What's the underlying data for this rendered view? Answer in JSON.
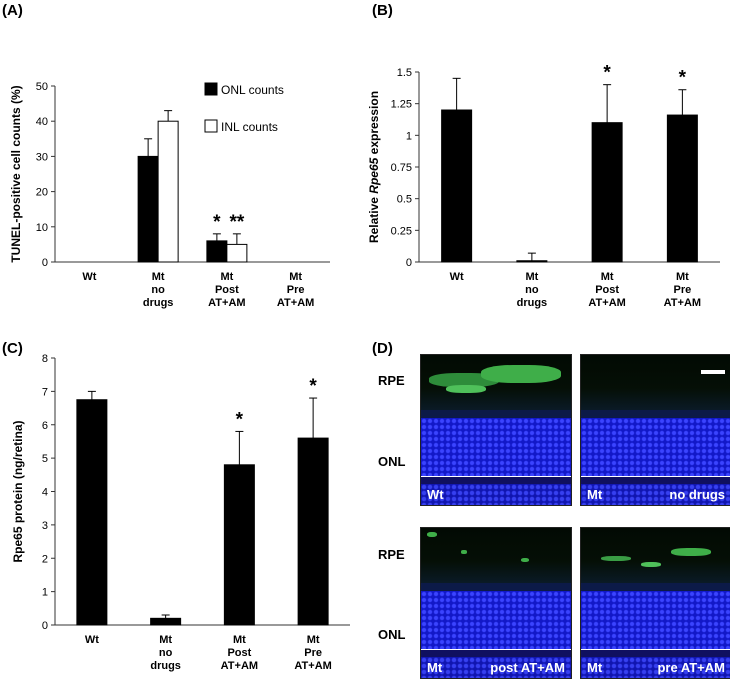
{
  "panels": {
    "A": {
      "label": "(A)"
    },
    "B": {
      "label": "(B)"
    },
    "C": {
      "label": "(C)"
    },
    "D": {
      "label": "(D)"
    }
  },
  "chart_data": [
    {
      "id": "A",
      "type": "bar",
      "ylabel": "TUNEL-positive cell counts (%)",
      "ylim": [
        0,
        50
      ],
      "yticks": [
        "0",
        "10",
        "20",
        "30",
        "40",
        "50"
      ],
      "categories": [
        [
          "Wt"
        ],
        [
          "Mt",
          "no",
          "drugs"
        ],
        [
          "Mt",
          "Post",
          "AT+AM"
        ],
        [
          "Mt",
          "Pre",
          "AT+AM"
        ]
      ],
      "series": [
        {
          "name": "ONL counts",
          "color": "#000000",
          "values": [
            0,
            30,
            6,
            0
          ],
          "errors": [
            0,
            5,
            2,
            0
          ]
        },
        {
          "name": "INL counts",
          "color": "#ffffff",
          "values": [
            0,
            40,
            5,
            0
          ],
          "errors": [
            0,
            3,
            3,
            0
          ]
        }
      ],
      "annotations": [
        {
          "text": "*",
          "category": 2,
          "series": 0
        },
        {
          "text": "**",
          "category": 2,
          "series": 1
        }
      ],
      "legend": "top-right"
    },
    {
      "id": "B",
      "type": "bar",
      "ylabel_parts": [
        "Relative ",
        "Rpe65",
        " expression"
      ],
      "ylim": [
        0,
        1.5
      ],
      "yticks": [
        "0",
        "0.25",
        "0.5",
        "0.75",
        "1",
        "1.25",
        "1.5"
      ],
      "categories": [
        [
          "Wt"
        ],
        [
          "Mt",
          "no",
          "drugs"
        ],
        [
          "Mt",
          "Post",
          "AT+AM"
        ],
        [
          "Mt",
          "Pre",
          "AT+AM"
        ]
      ],
      "series": [
        {
          "color": "#000000",
          "values": [
            1.2,
            0.01,
            1.1,
            1.16
          ],
          "errors": [
            0.25,
            0.06,
            0.3,
            0.2
          ]
        }
      ],
      "annotations": [
        {
          "text": "*",
          "category": 2,
          "series": 0
        },
        {
          "text": "*",
          "category": 3,
          "series": 0
        }
      ]
    },
    {
      "id": "C",
      "type": "bar",
      "ylabel": "Rpe65 protein (ng/retina)",
      "ylim": [
        0,
        8
      ],
      "yticks": [
        "0",
        "1",
        "2",
        "3",
        "4",
        "5",
        "6",
        "7",
        "8"
      ],
      "categories": [
        [
          "Wt"
        ],
        [
          "Mt",
          "no",
          "drugs"
        ],
        [
          "Mt",
          "Post",
          "AT+AM"
        ],
        [
          "Mt",
          "Pre",
          "AT+AM"
        ]
      ],
      "series": [
        {
          "color": "#000000",
          "values": [
            6.75,
            0.2,
            4.8,
            5.6
          ],
          "errors": [
            0.25,
            0.1,
            1.0,
            1.2
          ]
        }
      ],
      "annotations": [
        {
          "text": "*",
          "category": 2,
          "series": 0
        },
        {
          "text": "*",
          "category": 3,
          "series": 0
        }
      ]
    }
  ],
  "micrographs": {
    "row_labels": {
      "rpe": "RPE",
      "onl": "ONL"
    },
    "images": [
      {
        "left": "Wt",
        "right": ""
      },
      {
        "left": "Mt",
        "right": "no drugs"
      },
      {
        "left": "Mt",
        "right": "post AT+AM"
      },
      {
        "left": "Mt",
        "right": "pre AT+AM"
      }
    ]
  }
}
